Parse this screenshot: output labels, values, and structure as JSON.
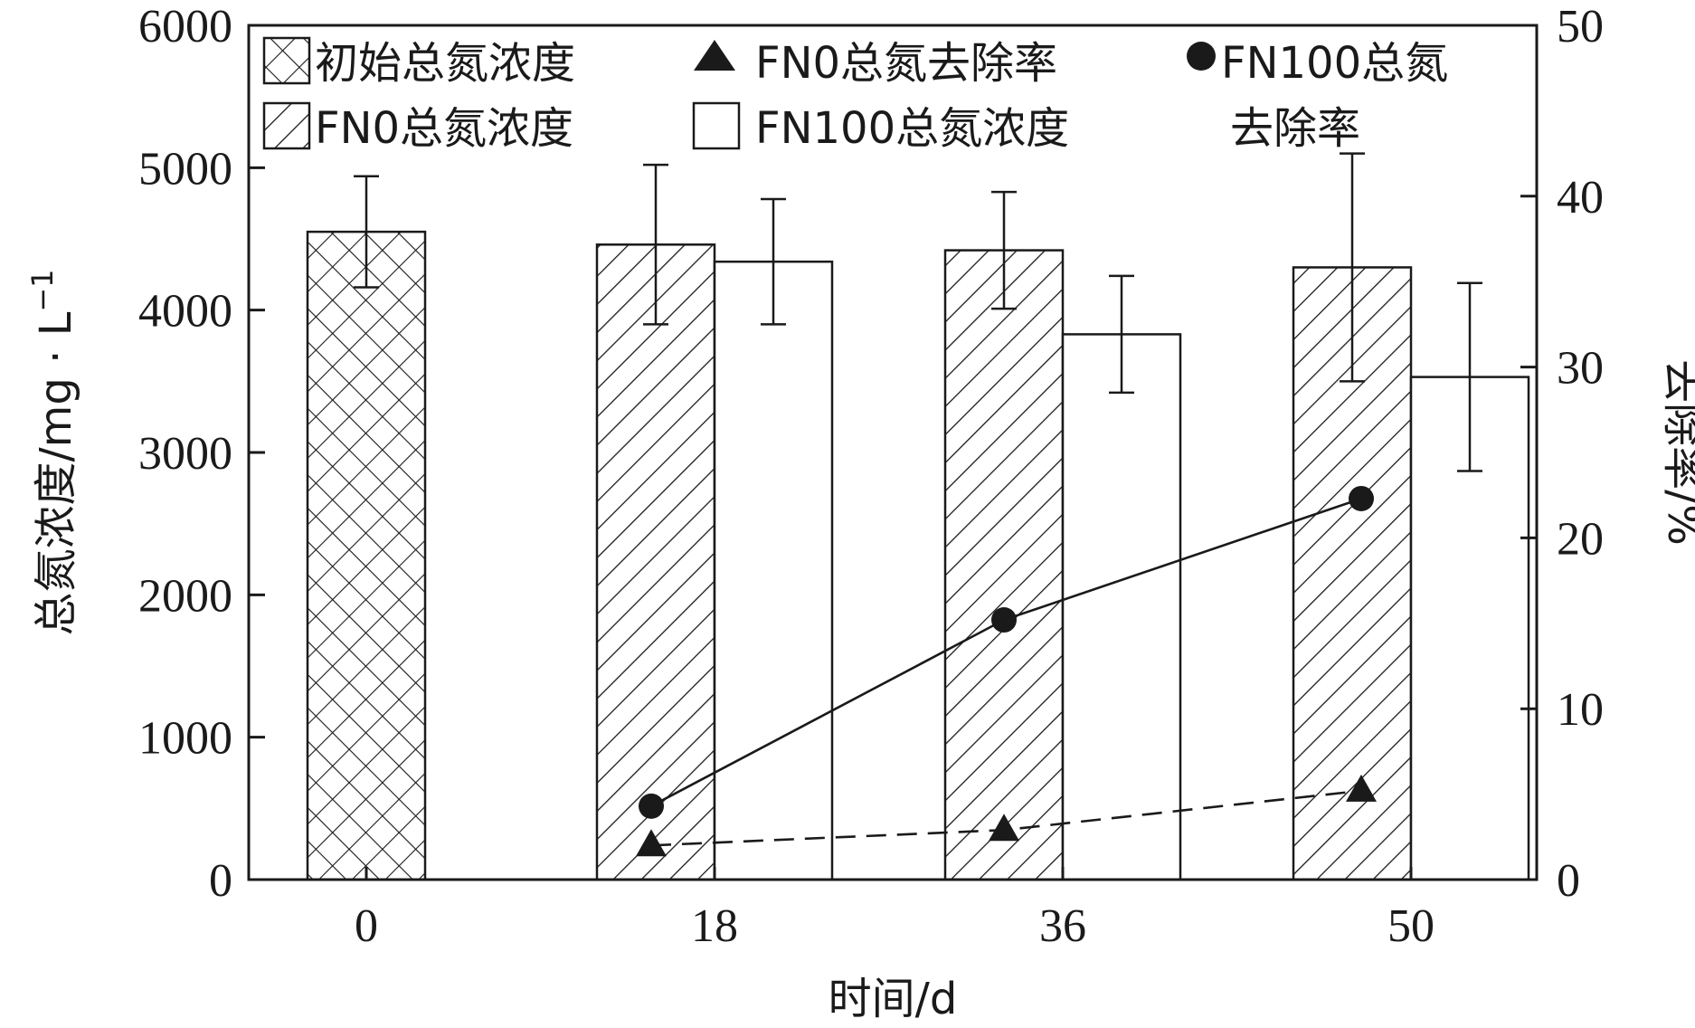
{
  "chart_data": {
    "type": "bar",
    "categories": [
      "0",
      "18",
      "36",
      "50"
    ],
    "xlabel": "时间/d",
    "ylabel": "总氮浓度/mg · L",
    "ylabel_sup": "−1",
    "y2label": "去除率/%",
    "ylim": [
      0,
      6000
    ],
    "y2lim": [
      0,
      50
    ],
    "yticks": [
      "0",
      "1000",
      "2000",
      "3000",
      "4000",
      "5000",
      "6000"
    ],
    "y2ticks": [
      "0",
      "10",
      "20",
      "30",
      "40",
      "50"
    ],
    "grid": false,
    "legend_position": "top",
    "legend": {
      "initial": "初始总氮浓度",
      "fn0_rate": "FN0总氮去除率",
      "fn100_rate_line1": "FN100总氮",
      "fn100_rate_line2": "去除率",
      "fn0_conc": "FN0总氮浓度",
      "fn100_conc": "FN100总氮浓度"
    },
    "bar_series": [
      {
        "name": "初始总氮浓度",
        "pattern": "crosshatch",
        "points": [
          {
            "cat": "0",
            "value": 4550,
            "err": 390
          }
        ]
      },
      {
        "name": "FN0总氮浓度",
        "pattern": "diagonal",
        "points": [
          {
            "cat": "18",
            "value": 4460,
            "err": 560
          },
          {
            "cat": "36",
            "value": 4420,
            "err": 410
          },
          {
            "cat": "50",
            "value": 4300,
            "err": 800
          }
        ]
      },
      {
        "name": "FN100总氮浓度",
        "pattern": "none",
        "points": [
          {
            "cat": "18",
            "value": 4340,
            "err": 440
          },
          {
            "cat": "36",
            "value": 3830,
            "err": 410
          },
          {
            "cat": "50",
            "value": 3530,
            "err": 660
          }
        ]
      }
    ],
    "line_series": [
      {
        "name": "FN0总氮去除率",
        "marker": "triangle",
        "style": "dashed",
        "points": [
          {
            "cat": "18",
            "value": 2.0
          },
          {
            "cat": "36",
            "value": 2.9
          },
          {
            "cat": "50",
            "value": 5.2
          }
        ]
      },
      {
        "name": "FN100总氮去除率",
        "marker": "circle",
        "style": "solid",
        "points": [
          {
            "cat": "18",
            "value": 4.3
          },
          {
            "cat": "36",
            "value": 15.2
          },
          {
            "cat": "50",
            "value": 22.3
          }
        ]
      }
    ]
  }
}
